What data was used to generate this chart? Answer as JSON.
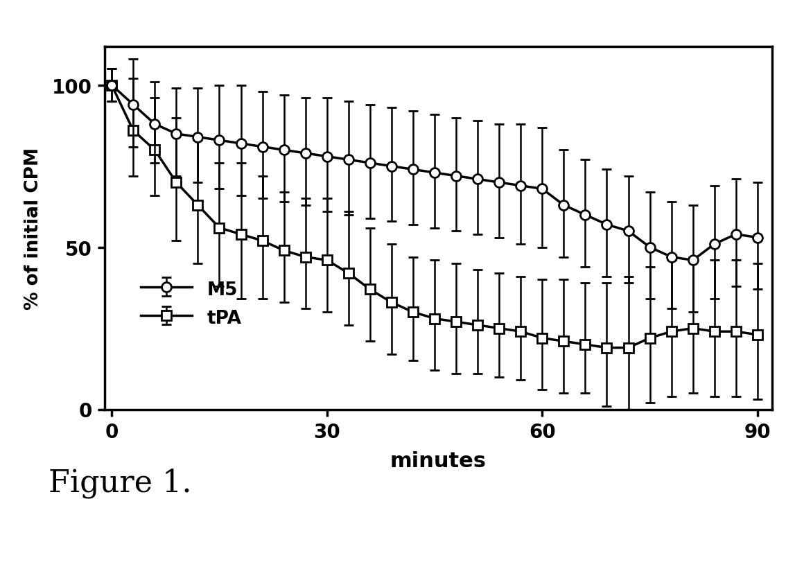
{
  "M5_x": [
    0,
    3,
    6,
    9,
    12,
    15,
    18,
    21,
    24,
    27,
    30,
    33,
    36,
    39,
    42,
    45,
    48,
    51,
    54,
    57,
    60,
    63,
    66,
    69,
    72,
    75,
    78,
    81,
    84,
    87,
    90
  ],
  "M5_y": [
    100,
    94,
    88,
    85,
    84,
    83,
    82,
    81,
    80,
    79,
    78,
    77,
    76,
    75,
    74,
    73,
    72,
    71,
    70,
    69,
    68,
    63,
    60,
    57,
    55,
    50,
    47,
    46,
    51,
    54,
    53
  ],
  "M5_err_upper": [
    5,
    14,
    13,
    14,
    15,
    17,
    18,
    17,
    17,
    17,
    18,
    18,
    18,
    18,
    18,
    18,
    18,
    18,
    18,
    19,
    19,
    17,
    17,
    17,
    17,
    17,
    17,
    17,
    18,
    17,
    17
  ],
  "M5_err_lower": [
    5,
    13,
    12,
    13,
    14,
    15,
    16,
    16,
    16,
    16,
    17,
    17,
    17,
    17,
    17,
    17,
    17,
    17,
    17,
    18,
    18,
    16,
    16,
    16,
    16,
    16,
    16,
    16,
    17,
    16,
    16
  ],
  "tPA_x": [
    0,
    3,
    6,
    9,
    12,
    15,
    18,
    21,
    24,
    27,
    30,
    33,
    36,
    39,
    42,
    45,
    48,
    51,
    54,
    57,
    60,
    63,
    66,
    69,
    72,
    75,
    78,
    81,
    84,
    87,
    90
  ],
  "tPA_y": [
    100,
    86,
    80,
    70,
    63,
    56,
    54,
    52,
    49,
    47,
    46,
    42,
    37,
    33,
    30,
    28,
    27,
    26,
    25,
    24,
    22,
    21,
    20,
    19,
    19,
    22,
    24,
    25,
    24,
    24,
    23
  ],
  "tPA_err_upper": [
    5,
    16,
    16,
    20,
    20,
    20,
    22,
    20,
    18,
    18,
    19,
    19,
    19,
    18,
    17,
    18,
    18,
    17,
    17,
    17,
    18,
    19,
    19,
    20,
    22,
    22,
    22,
    22,
    22,
    22,
    22
  ],
  "tPA_err_lower": [
    5,
    14,
    14,
    18,
    18,
    18,
    20,
    18,
    16,
    16,
    16,
    16,
    16,
    16,
    15,
    16,
    16,
    15,
    15,
    15,
    16,
    16,
    15,
    18,
    20,
    20,
    20,
    20,
    20,
    20,
    20
  ],
  "xlabel": "minutes",
  "ylabel": "% of initial CPM",
  "xlim": [
    -1,
    92
  ],
  "ylim": [
    0,
    112
  ],
  "xticks": [
    0,
    30,
    60,
    90
  ],
  "yticks": [
    0,
    50,
    100
  ],
  "figure_label": "Figure 1.",
  "line_color": "#000000",
  "background_color": "#ffffff"
}
